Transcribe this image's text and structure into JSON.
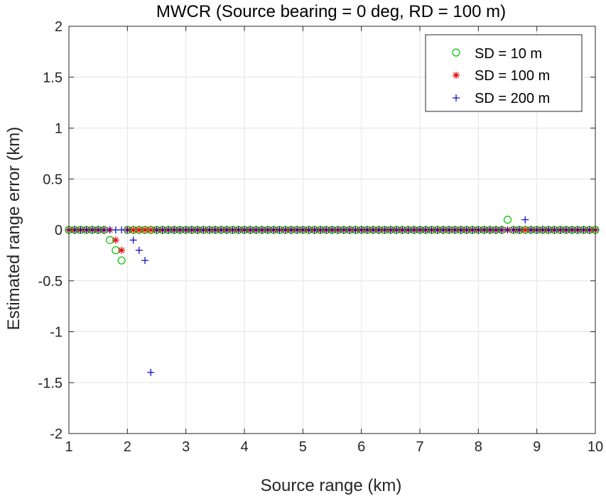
{
  "chart_data": {
    "type": "scatter",
    "title": "MWCR (Source bearing = 0 deg, RD = 100 m)",
    "xlabel": "Source range (km)",
    "ylabel": "Estimated range error (km)",
    "xlim": [
      1,
      10
    ],
    "ylim": [
      -2,
      2
    ],
    "xticks": [
      1,
      2,
      3,
      4,
      5,
      6,
      7,
      8,
      9,
      10
    ],
    "yticks": [
      -2,
      -1.5,
      -1,
      -0.5,
      0,
      0.5,
      1,
      1.5,
      2
    ],
    "xtick_labels": [
      "1",
      "2",
      "3",
      "4",
      "5",
      "6",
      "7",
      "8",
      "9",
      "10"
    ],
    "ytick_labels": [
      "-2",
      "-1.5",
      "-1",
      "-0.5",
      "0",
      "0.5",
      "1",
      "1.5",
      "2"
    ],
    "grid": true,
    "legend_location": "top-right",
    "x_step": 0.1,
    "series": [
      {
        "name": "SD = 10 m",
        "marker": "circle",
        "color": "#00c000",
        "baseline": 0,
        "exceptions": [
          {
            "x": 1.7,
            "y": -0.1
          },
          {
            "x": 1.8,
            "y": -0.2
          },
          {
            "x": 1.9,
            "y": -0.3
          },
          {
            "x": 8.5,
            "y": 0.1
          }
        ]
      },
      {
        "name": "SD = 100 m",
        "marker": "asterisk",
        "color": "#e00000",
        "baseline": 0,
        "exceptions": [
          {
            "x": 1.8,
            "y": -0.1
          },
          {
            "x": 1.9,
            "y": -0.2
          }
        ]
      },
      {
        "name": "SD = 200 m",
        "marker": "plus",
        "color": "#0000c0",
        "baseline": 0,
        "exceptions": [
          {
            "x": 2.1,
            "y": -0.1
          },
          {
            "x": 2.2,
            "y": -0.2
          },
          {
            "x": 2.3,
            "y": -0.3
          },
          {
            "x": 2.4,
            "y": -1.4
          },
          {
            "x": 8.8,
            "y": 0.1
          }
        ]
      }
    ]
  }
}
